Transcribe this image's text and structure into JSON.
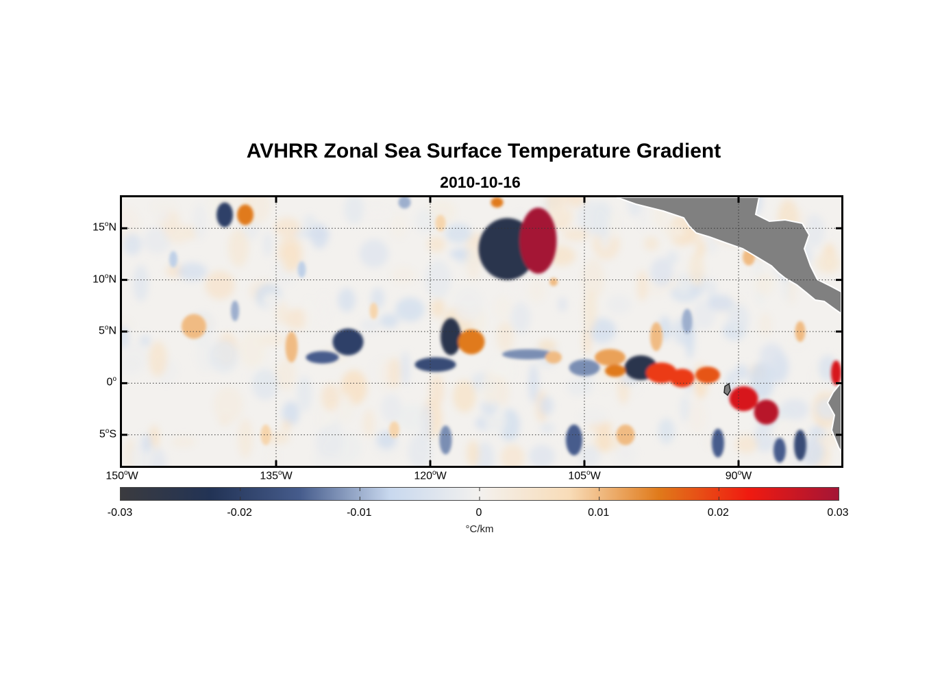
{
  "title": "AVHRR Zonal Sea Surface Temperature Gradient",
  "subtitle": "2010-10-16",
  "latitude_labels": [
    {
      "deg": "15",
      "hem": "N",
      "value": 15
    },
    {
      "deg": "10",
      "hem": "N",
      "value": 10
    },
    {
      "deg": "5",
      "hem": "N",
      "value": 5
    },
    {
      "deg": "0",
      "hem": "",
      "value": 0
    },
    {
      "deg": "5",
      "hem": "S",
      "value": -5
    }
  ],
  "longitude_labels": [
    {
      "deg": "150",
      "hem": "W",
      "value": -150
    },
    {
      "deg": "135",
      "hem": "W",
      "value": -135
    },
    {
      "deg": "120",
      "hem": "W",
      "value": -120
    },
    {
      "deg": "105",
      "hem": "W",
      "value": -105
    },
    {
      "deg": "90",
      "hem": "W",
      "value": -90
    }
  ],
  "map_extent": {
    "lon_min": -150,
    "lon_max": -80,
    "lat_min": -8,
    "lat_max": 18
  },
  "colorbar": {
    "min": -0.03,
    "max": 0.03,
    "tick_labels": [
      "-0.03",
      "-0.02",
      "-0.01",
      "0",
      "0.01",
      "0.02",
      "0.03"
    ],
    "units": "°C/km",
    "colors": [
      "#3b3b3f",
      "#223355",
      "#465c8c",
      "#c8d8ee",
      "#f3f1ee",
      "#f8dcb8",
      "#e07a1a",
      "#f01a10",
      "#a41536"
    ]
  },
  "land_color": "#808080",
  "features": [
    {
      "lon": -112.5,
      "lat": 13.0,
      "rx": 2.8,
      "ry": 3.0,
      "value": -0.025
    },
    {
      "lon": -109.5,
      "lat": 13.8,
      "rx": 1.8,
      "ry": 3.2,
      "value": 0.03
    },
    {
      "lon": -99.5,
      "lat": 1.5,
      "rx": 1.6,
      "ry": 1.2,
      "value": -0.025
    },
    {
      "lon": -97.5,
      "lat": 1.0,
      "rx": 1.5,
      "ry": 1.0,
      "value": 0.02
    },
    {
      "lon": -95.5,
      "lat": 0.5,
      "rx": 1.2,
      "ry": 0.9,
      "value": 0.02
    },
    {
      "lon": -93.0,
      "lat": 0.8,
      "rx": 1.2,
      "ry": 0.8,
      "value": 0.018
    },
    {
      "lon": -89.5,
      "lat": -1.5,
      "rx": 1.4,
      "ry": 1.2,
      "value": 0.025
    },
    {
      "lon": -87.3,
      "lat": -2.8,
      "rx": 1.2,
      "ry": 1.2,
      "value": 0.028
    },
    {
      "lon": -118.0,
      "lat": 4.5,
      "rx": 1.0,
      "ry": 1.8,
      "value": -0.025
    },
    {
      "lon": -116.0,
      "lat": 4.0,
      "rx": 1.3,
      "ry": 1.2,
      "value": 0.015
    },
    {
      "lon": -119.5,
      "lat": 1.8,
      "rx": 2.0,
      "ry": 0.7,
      "value": -0.018
    },
    {
      "lon": -128.0,
      "lat": 4.0,
      "rx": 1.5,
      "ry": 1.3,
      "value": -0.02
    },
    {
      "lon": -133.5,
      "lat": 3.5,
      "rx": 0.6,
      "ry": 1.5,
      "value": 0.01
    },
    {
      "lon": -130.5,
      "lat": 2.5,
      "rx": 1.6,
      "ry": 0.6,
      "value": -0.015
    },
    {
      "lon": -143.0,
      "lat": 5.5,
      "rx": 1.2,
      "ry": 1.2,
      "value": 0.01
    },
    {
      "lon": -140.0,
      "lat": 16.3,
      "rx": 0.8,
      "ry": 1.2,
      "value": -0.02
    },
    {
      "lon": -138.0,
      "lat": 16.3,
      "rx": 0.8,
      "ry": 1.0,
      "value": 0.015
    },
    {
      "lon": -102.5,
      "lat": 2.5,
      "rx": 1.5,
      "ry": 0.8,
      "value": 0.012
    },
    {
      "lon": -105.0,
      "lat": 1.5,
      "rx": 1.5,
      "ry": 0.8,
      "value": -0.012
    },
    {
      "lon": -102.0,
      "lat": 1.2,
      "rx": 1.0,
      "ry": 0.6,
      "value": 0.015
    },
    {
      "lon": -110.5,
      "lat": 2.8,
      "rx": 2.5,
      "ry": 0.5,
      "value": -0.012
    },
    {
      "lon": -108.0,
      "lat": 2.5,
      "rx": 0.8,
      "ry": 0.6,
      "value": 0.01
    },
    {
      "lon": -101.0,
      "lat": -5.0,
      "rx": 0.9,
      "ry": 1.0,
      "value": 0.01
    },
    {
      "lon": -98.0,
      "lat": 4.5,
      "rx": 0.6,
      "ry": 1.4,
      "value": 0.01
    },
    {
      "lon": -84.0,
      "lat": -6.0,
      "rx": 0.6,
      "ry": 1.5,
      "value": -0.018
    },
    {
      "lon": -86.0,
      "lat": -6.5,
      "rx": 0.6,
      "ry": 1.2,
      "value": -0.015
    },
    {
      "lon": -92.0,
      "lat": -5.8,
      "rx": 0.6,
      "ry": 1.4,
      "value": -0.015
    },
    {
      "lon": -106.0,
      "lat": -5.5,
      "rx": 0.8,
      "ry": 1.5,
      "value": -0.015
    },
    {
      "lon": -118.5,
      "lat": -5.5,
      "rx": 0.6,
      "ry": 1.4,
      "value": -0.012
    },
    {
      "lon": -123.5,
      "lat": -4.5,
      "rx": 0.5,
      "ry": 0.8,
      "value": 0.008
    },
    {
      "lon": -136.0,
      "lat": -5.0,
      "rx": 0.5,
      "ry": 1.0,
      "value": 0.008
    },
    {
      "lon": -108.0,
      "lat": 9.8,
      "rx": 0.4,
      "ry": 0.4,
      "value": 0.01
    },
    {
      "lon": -84.0,
      "lat": 5.0,
      "rx": 0.5,
      "ry": 1.0,
      "value": 0.01
    },
    {
      "lon": -80.5,
      "lat": 1.0,
      "rx": 0.5,
      "ry": 1.2,
      "value": 0.025
    },
    {
      "lon": -122.5,
      "lat": 17.5,
      "rx": 0.6,
      "ry": 0.6,
      "value": -0.01
    },
    {
      "lon": -119.0,
      "lat": 15.5,
      "rx": 0.5,
      "ry": 0.8,
      "value": 0.008
    },
    {
      "lon": -113.5,
      "lat": 17.5,
      "rx": 0.6,
      "ry": 0.5,
      "value": 0.015
    },
    {
      "lon": -89.0,
      "lat": 12.2,
      "rx": 0.6,
      "ry": 0.8,
      "value": 0.01
    },
    {
      "lon": -95.0,
      "lat": 6.0,
      "rx": 0.5,
      "ry": 1.2,
      "value": -0.01
    },
    {
      "lon": -125.5,
      "lat": 7.0,
      "rx": 0.4,
      "ry": 0.8,
      "value": 0.008
    },
    {
      "lon": -139.0,
      "lat": 7.0,
      "rx": 0.4,
      "ry": 1.0,
      "value": -0.01
    },
    {
      "lon": -145.0,
      "lat": 12.0,
      "rx": 0.4,
      "ry": 0.8,
      "value": -0.008
    },
    {
      "lon": -132.5,
      "lat": 11.0,
      "rx": 0.4,
      "ry": 0.8,
      "value": -0.008
    }
  ]
}
